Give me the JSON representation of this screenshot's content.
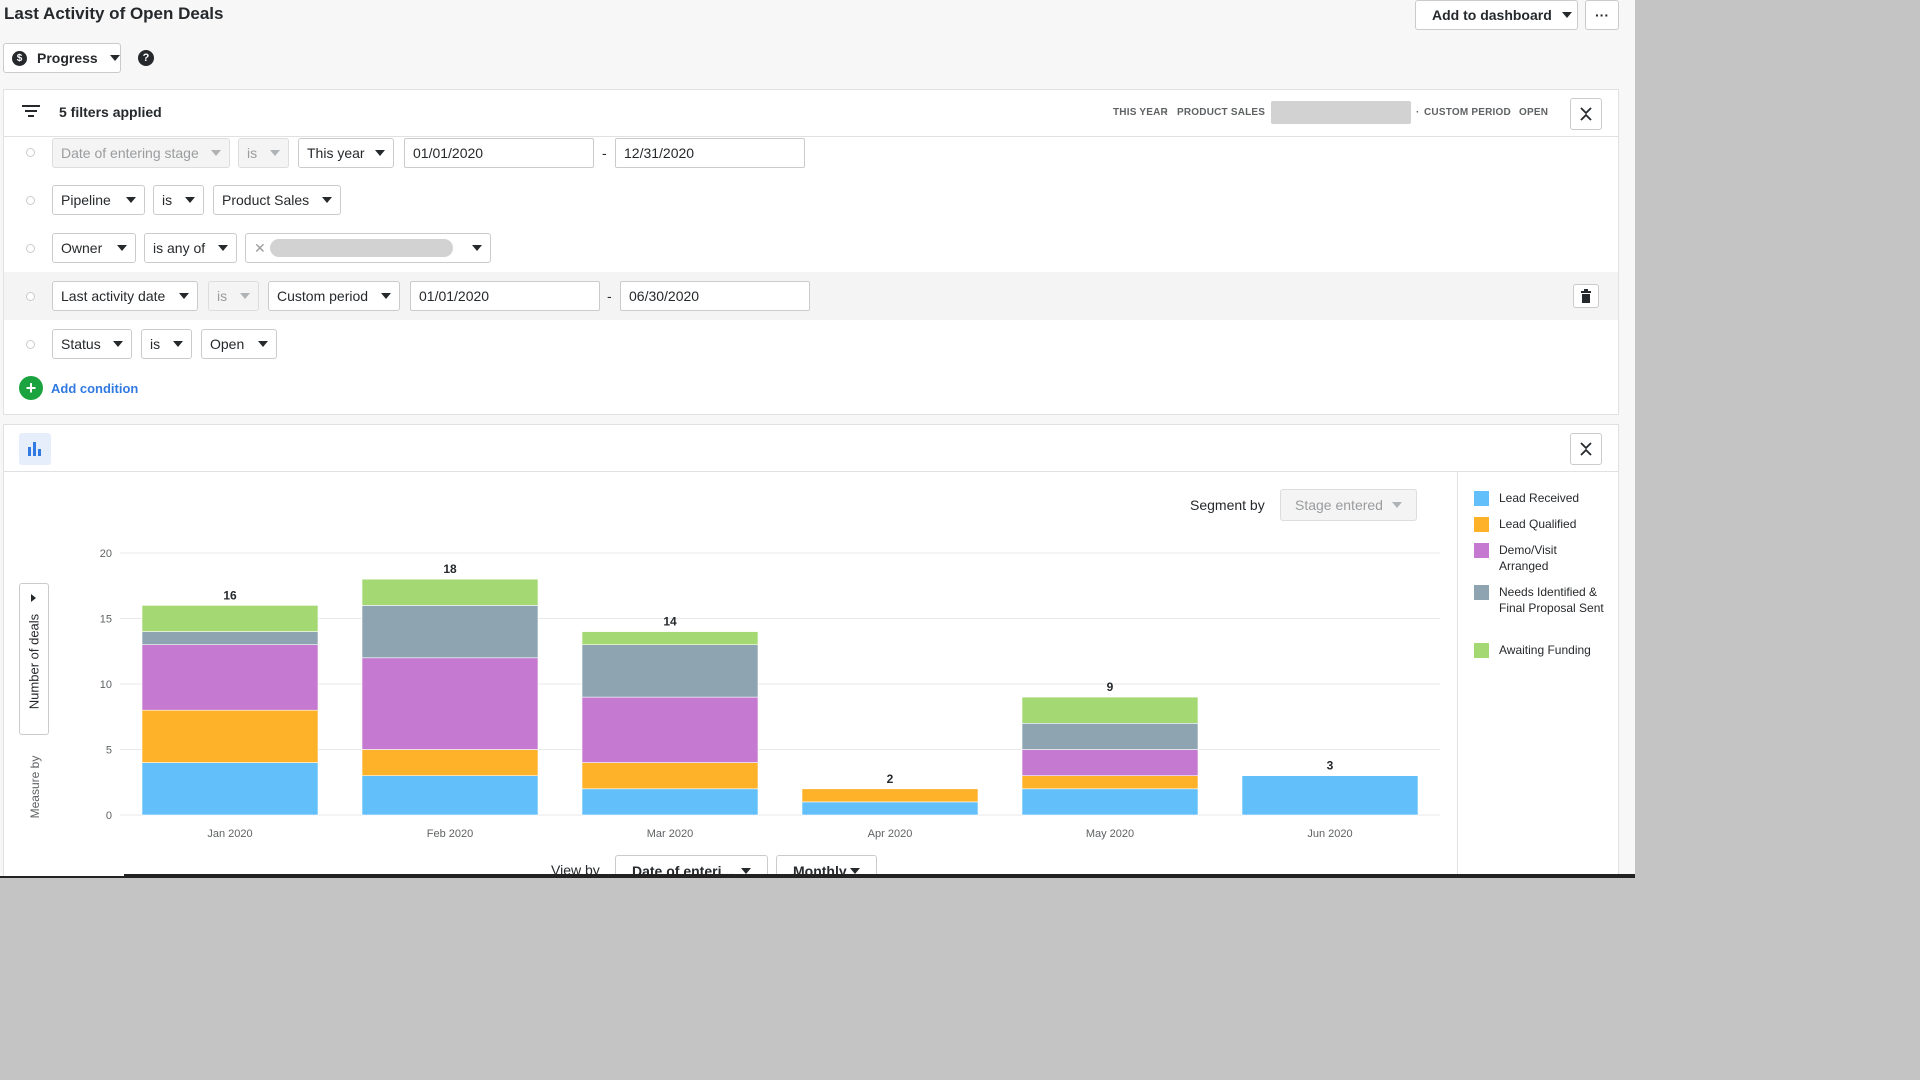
{
  "page": {
    "title": "Last Activity of Open Deals"
  },
  "header": {
    "add_to_dashboard": "Add to dashboard",
    "more": "···"
  },
  "progress": {
    "label": "Progress",
    "help": "?"
  },
  "filters": {
    "summary_label": "5 filters applied",
    "summary_tags": [
      "THIS YEAR",
      "PRODUCT SALES",
      "CUSTOM PERIOD",
      "OPEN"
    ],
    "rows": [
      {
        "field": "Date of entering stage",
        "op": "is",
        "value": "This year",
        "from": "01/01/2020",
        "to": "12/31/2020"
      },
      {
        "field": "Pipeline",
        "op": "is",
        "value": "Product Sales"
      },
      {
        "field": "Owner",
        "op": "is any of"
      },
      {
        "field": "Last activity date",
        "op": "is",
        "value": "Custom period",
        "from": "01/01/2020",
        "to": "06/30/2020"
      },
      {
        "field": "Status",
        "op": "is",
        "value": "Open"
      }
    ],
    "range_sep": "-",
    "add_condition": "Add condition"
  },
  "chart_controls": {
    "segment_by_label": "Segment by",
    "segment_by_value": "Stage entered",
    "measure_by_label": "Measure by",
    "measure_value": "Number of deals",
    "view_by_label": "View by",
    "view_by_value": "Date of enteri...",
    "interval_value": "Monthly"
  },
  "colors": {
    "lead_received": "#62bff9",
    "lead_qualified": "#feb22a",
    "demo": "#c679d0",
    "needs": "#8ea5b1",
    "awaiting": "#a4d872",
    "accent_green": "#1aa33e",
    "link_blue": "#317ae2"
  },
  "chart_data": {
    "type": "bar",
    "stacked": true,
    "categories": [
      "Jan 2020",
      "Feb 2020",
      "Mar 2020",
      "Apr 2020",
      "May 2020",
      "Jun 2020"
    ],
    "totals": [
      16,
      18,
      14,
      2,
      9,
      3
    ],
    "series": [
      {
        "name": "Lead Received",
        "values": [
          4,
          3,
          2,
          1,
          2,
          3
        ]
      },
      {
        "name": "Lead Qualified",
        "values": [
          4,
          2,
          2,
          1,
          1,
          0
        ]
      },
      {
        "name": "Demo/Visit Arranged",
        "values": [
          5,
          7,
          5,
          0,
          2,
          0
        ]
      },
      {
        "name": "Needs Identified & Final Proposal Sent",
        "values": [
          1,
          4,
          4,
          0,
          2,
          0
        ]
      },
      {
        "name": "Awaiting Funding",
        "values": [
          2,
          2,
          1,
          0,
          2,
          0
        ]
      }
    ],
    "yticks": [
      "0",
      "5",
      "10",
      "15",
      "20"
    ],
    "ylim": [
      0,
      20
    ],
    "legend_position": "right"
  }
}
